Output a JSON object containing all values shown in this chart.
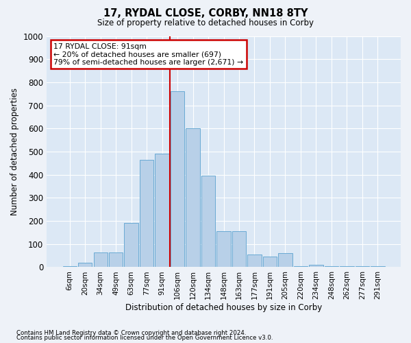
{
  "title": "17, RYDAL CLOSE, CORBY, NN18 8TY",
  "subtitle": "Size of property relative to detached houses in Corby",
  "xlabel": "Distribution of detached houses by size in Corby",
  "ylabel": "Number of detached properties",
  "categories": [
    "6sqm",
    "20sqm",
    "34sqm",
    "49sqm",
    "63sqm",
    "77sqm",
    "91sqm",
    "106sqm",
    "120sqm",
    "134sqm",
    "148sqm",
    "163sqm",
    "177sqm",
    "191sqm",
    "205sqm",
    "220sqm",
    "234sqm",
    "248sqm",
    "262sqm",
    "277sqm",
    "291sqm"
  ],
  "values": [
    5,
    20,
    65,
    65,
    190,
    465,
    490,
    760,
    600,
    395,
    155,
    155,
    55,
    45,
    60,
    5,
    10,
    5,
    5,
    5,
    5
  ],
  "bar_color": "#b8d0e8",
  "bar_edge_color": "#6aaad4",
  "vline_x": 6.5,
  "vline_color": "#cc0000",
  "annotation_text": "17 RYDAL CLOSE: 91sqm\n← 20% of detached houses are smaller (697)\n79% of semi-detached houses are larger (2,671) →",
  "annotation_box_color": "#ffffff",
  "annotation_box_edge_color": "#cc0000",
  "footnote1": "Contains HM Land Registry data © Crown copyright and database right 2024.",
  "footnote2": "Contains public sector information licensed under the Open Government Licence v3.0.",
  "ylim": [
    0,
    1000
  ],
  "yticks": [
    0,
    100,
    200,
    300,
    400,
    500,
    600,
    700,
    800,
    900,
    1000
  ],
  "background_color": "#eef2f8",
  "plot_bg_color": "#dce8f5"
}
